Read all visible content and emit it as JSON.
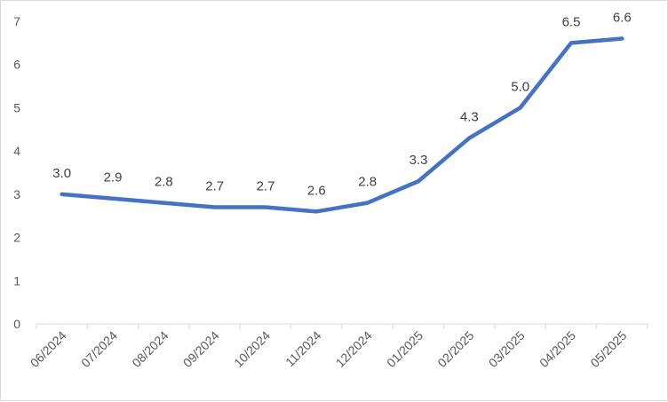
{
  "chart_data": {
    "type": "line",
    "title": "",
    "xlabel": "",
    "ylabel": "",
    "categories": [
      "06/2024",
      "07/2024",
      "08/2024",
      "09/2024",
      "10/2024",
      "11/2024",
      "12/2024",
      "01/2025",
      "02/2025",
      "03/2025",
      "04/2025",
      "05/2025"
    ],
    "series": [
      {
        "values": [
          3.0,
          2.9,
          2.8,
          2.7,
          2.7,
          2.6,
          2.8,
          3.3,
          4.3,
          5.0,
          6.5,
          6.6
        ],
        "labels": [
          "3.0",
          "2.9",
          "2.8",
          "2.7",
          "2.7",
          "2.6",
          "2.8",
          "3.3",
          "4.3",
          "5.0",
          "6.5",
          "6.6"
        ],
        "color": "#4472c4"
      }
    ],
    "ylim": [
      0,
      7
    ],
    "yticks": [
      "0",
      "1",
      "2",
      "3",
      "4",
      "5",
      "6",
      "7"
    ],
    "grid": false,
    "legend": "none"
  }
}
